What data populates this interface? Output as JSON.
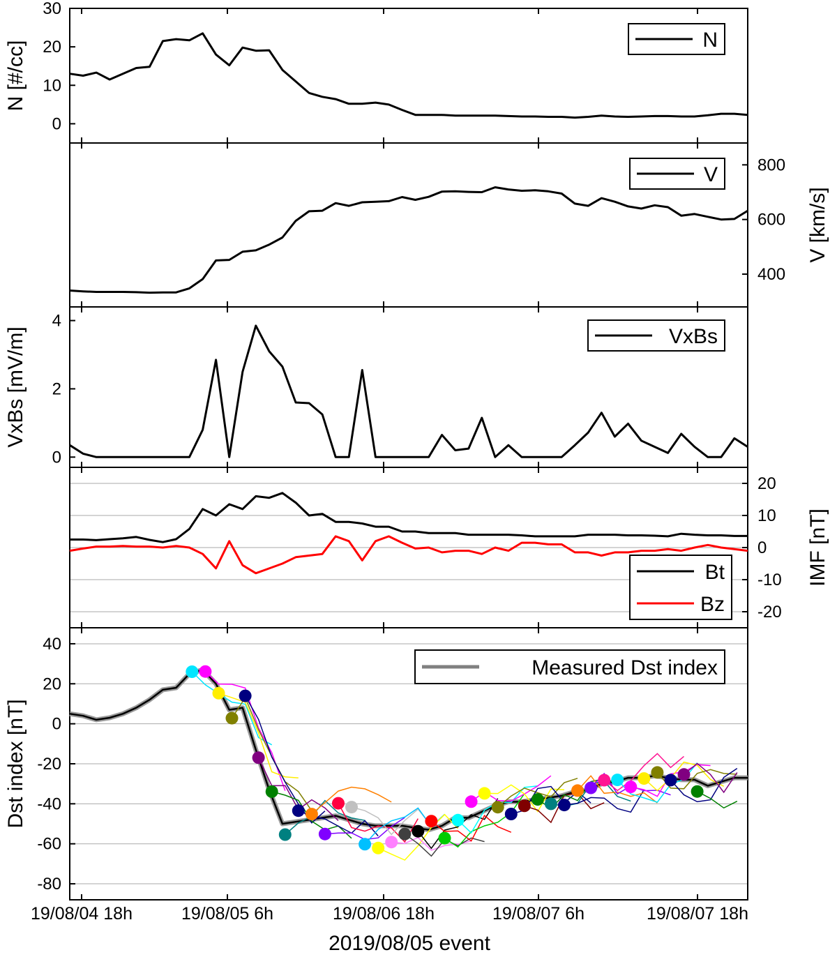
{
  "x_axis": {
    "tick_labels": [
      "19/08/04 18h",
      "19/08/05 6h",
      "19/08/06 18h",
      "19/08/07 6h",
      "19/08/07 18h"
    ],
    "label": "2019/08/05 event"
  },
  "chart_data": [
    {
      "type": "line",
      "ylabel": "N [#/cc]",
      "ylim": [
        -5,
        30
      ],
      "yticks": [
        0,
        10,
        20,
        30
      ],
      "legend": {
        "position": "top-right",
        "entries": [
          "N"
        ]
      },
      "grid": false,
      "series": [
        {
          "name": "N",
          "color": "#000000",
          "x": [
            0,
            1,
            2,
            3,
            4,
            5,
            6,
            7,
            8,
            9,
            10,
            11,
            12,
            13,
            14,
            15,
            16,
            17,
            18,
            19,
            20,
            21,
            22,
            23,
            24,
            25,
            26,
            27,
            28,
            29,
            30,
            31,
            32,
            33,
            34,
            35,
            36,
            37,
            38,
            39,
            40,
            41,
            42,
            43,
            44,
            45,
            46,
            47,
            48,
            49,
            50,
            51
          ],
          "y": [
            13,
            12.5,
            13.3,
            11.5,
            13,
            14.5,
            14.8,
            21.5,
            22,
            21.7,
            23.5,
            18,
            15.2,
            19.8,
            19,
            19.1,
            14,
            11,
            8,
            7,
            6.4,
            5.2,
            5.2,
            5.5,
            5,
            3.6,
            2.3,
            2.3,
            2.3,
            2.1,
            2.1,
            2.1,
            2.1,
            2.0,
            1.9,
            1.9,
            1.8,
            1.8,
            1.6,
            1.8,
            2.1,
            1.9,
            1.8,
            1.9,
            2.0,
            2.0,
            1.9,
            1.9,
            2.2,
            2.6,
            2.6,
            2.3
          ]
        }
      ]
    },
    {
      "type": "line",
      "ylabel": "V [km/s]",
      "ylim": [
        280,
        880
      ],
      "yticks": [
        400,
        600,
        800
      ],
      "legend": {
        "position": "top-right",
        "entries": [
          "V"
        ]
      },
      "grid": false,
      "series": [
        {
          "name": "V",
          "color": "#000000",
          "x": [
            0,
            1,
            2,
            3,
            4,
            5,
            6,
            7,
            8,
            9,
            10,
            11,
            12,
            13,
            14,
            15,
            16,
            17,
            18,
            19,
            20,
            21,
            22,
            23,
            24,
            25,
            26,
            27,
            28,
            29,
            30,
            31,
            32,
            33,
            34,
            35,
            36,
            37,
            38,
            39,
            40,
            41,
            42,
            43,
            44,
            45,
            46,
            47,
            48,
            49,
            50,
            51
          ],
          "y": [
            340,
            337,
            335,
            335,
            335,
            334,
            332,
            333,
            333,
            348,
            382,
            450,
            452,
            482,
            487,
            508,
            534,
            595,
            630,
            632,
            660,
            650,
            663,
            665,
            667,
            682,
            672,
            683,
            702,
            703,
            701,
            700,
            718,
            710,
            705,
            707,
            703,
            695,
            658,
            650,
            678,
            665,
            648,
            640,
            652,
            645,
            614,
            620,
            610,
            600,
            602,
            632
          ]
        }
      ]
    },
    {
      "type": "line",
      "ylabel": "VxBs [mV/m]",
      "ylim": [
        -0.3,
        4.4
      ],
      "yticks": [
        0,
        2,
        4
      ],
      "legend": {
        "position": "top-right",
        "entries": [
          "VxBs"
        ]
      },
      "grid": false,
      "series": [
        {
          "name": "VxBs",
          "color": "#000000",
          "x": [
            0,
            1,
            2,
            3,
            4,
            5,
            6,
            7,
            8,
            9,
            10,
            11,
            12,
            13,
            14,
            15,
            16,
            17,
            18,
            19,
            20,
            21,
            22,
            23,
            24,
            25,
            26,
            27,
            28,
            29,
            30,
            31,
            32,
            33,
            34,
            35,
            36,
            37,
            38,
            39,
            40,
            41,
            42,
            43,
            44,
            45,
            46,
            47,
            48,
            49,
            50,
            51
          ],
          "y": [
            0.35,
            0.1,
            0,
            0,
            0,
            0,
            0,
            0,
            0,
            0,
            0.8,
            2.85,
            0,
            2.5,
            3.85,
            3.1,
            2.65,
            1.6,
            1.58,
            1.25,
            0,
            0,
            2.55,
            0,
            0,
            0,
            0,
            0,
            0.65,
            0.2,
            0.25,
            1.15,
            0,
            0.35,
            0,
            0,
            0,
            0,
            0.35,
            0.72,
            1.3,
            0.6,
            0.98,
            0.48,
            0.3,
            0.12,
            0.68,
            0.3,
            0,
            0,
            0.55,
            0.3
          ]
        }
      ]
    },
    {
      "type": "line",
      "ylabel": "IMF [nT]",
      "ylim": [
        -25,
        25
      ],
      "yticks": [
        -20,
        -10,
        0,
        10,
        20
      ],
      "legend": {
        "position": "bottom-right",
        "entries": [
          "Bt",
          "Bz"
        ]
      },
      "grid": true,
      "series": [
        {
          "name": "Bt",
          "color": "#000000",
          "x": [
            0,
            1,
            2,
            3,
            4,
            5,
            6,
            7,
            8,
            9,
            10,
            11,
            12,
            13,
            14,
            15,
            16,
            17,
            18,
            19,
            20,
            21,
            22,
            23,
            24,
            25,
            26,
            27,
            28,
            29,
            30,
            31,
            32,
            33,
            34,
            35,
            36,
            37,
            38,
            39,
            40,
            41,
            42,
            43,
            44,
            45,
            46,
            47,
            48,
            49,
            50,
            51
          ],
          "y": [
            2.5,
            2.5,
            2.3,
            2.6,
            2.9,
            3.3,
            2.4,
            1.7,
            2.6,
            5.8,
            12,
            10,
            13.5,
            12,
            16,
            15.5,
            17,
            14,
            10,
            10.5,
            8,
            8,
            7.5,
            6.5,
            6.5,
            5,
            5,
            4.5,
            4.5,
            4.5,
            4,
            4,
            4,
            4,
            3.8,
            3.5,
            3.5,
            3.5,
            3.5,
            4,
            4,
            4,
            3.8,
            3.8,
            3.7,
            3.5,
            4.3,
            4.0,
            3.8,
            3.8,
            3.6,
            3.6
          ]
        },
        {
          "name": "Bz",
          "color": "#ff0000",
          "x": [
            0,
            1,
            2,
            3,
            4,
            5,
            6,
            7,
            8,
            9,
            10,
            11,
            12,
            13,
            14,
            15,
            16,
            17,
            18,
            19,
            20,
            21,
            22,
            23,
            24,
            25,
            26,
            27,
            28,
            29,
            30,
            31,
            32,
            33,
            34,
            35,
            36,
            37,
            38,
            39,
            40,
            41,
            42,
            43,
            44,
            45,
            46,
            47,
            48,
            49,
            50,
            51
          ],
          "y": [
            -1,
            -0.3,
            0.3,
            0.3,
            0.5,
            0.3,
            0.3,
            0,
            0.5,
            0,
            -2,
            -6.5,
            2,
            -5.5,
            -8,
            -6.5,
            -5,
            -3,
            -2.5,
            -2,
            3.5,
            2,
            -4,
            2,
            3.5,
            1.5,
            -0.3,
            0,
            -1.5,
            -1,
            -1,
            -2,
            0,
            -1,
            1.5,
            1.5,
            1,
            1,
            -1.5,
            -1.5,
            -2.5,
            -1.5,
            -1.5,
            -1,
            -1,
            -0.5,
            -1,
            0,
            0.8,
            0,
            -0.5,
            -1
          ]
        }
      ]
    },
    {
      "type": "line",
      "ylabel": "Dst index [nT]",
      "ylim": [
        -88,
        48
      ],
      "yticks": [
        -80,
        -60,
        -40,
        -20,
        0,
        20,
        40
      ],
      "legend": {
        "position": "top-right",
        "entries": [
          "Measured Dst index"
        ]
      },
      "grid": true,
      "series": [
        {
          "name": "Measured Dst index",
          "color": "#000000",
          "x": [
            0,
            1,
            2,
            3,
            4,
            5,
            6,
            7,
            8,
            9,
            10,
            11,
            12,
            13,
            14,
            15,
            16,
            17,
            18,
            19,
            20,
            21,
            22,
            23,
            24,
            25,
            26,
            27,
            28,
            29,
            30,
            31,
            32,
            33,
            34,
            35,
            36,
            37,
            38,
            39,
            40,
            41,
            42,
            43,
            44,
            45,
            46,
            47,
            48,
            49,
            50,
            51
          ],
          "y": [
            5,
            4,
            2,
            3,
            5,
            8,
            12,
            17,
            18,
            25,
            27,
            20,
            7,
            8,
            -13,
            -33,
            -50,
            -49,
            -48,
            -47,
            -46,
            -48,
            -50,
            -51,
            -51,
            -51,
            -52,
            -53,
            -51,
            -47,
            -47,
            -44,
            -41,
            -39,
            -39,
            -38,
            -37,
            -36,
            -34,
            -33,
            -30,
            -29,
            -27,
            -27,
            -26,
            -27,
            -28,
            -28,
            -31,
            -29,
            -27,
            -27
          ]
        }
      ]
    }
  ]
}
